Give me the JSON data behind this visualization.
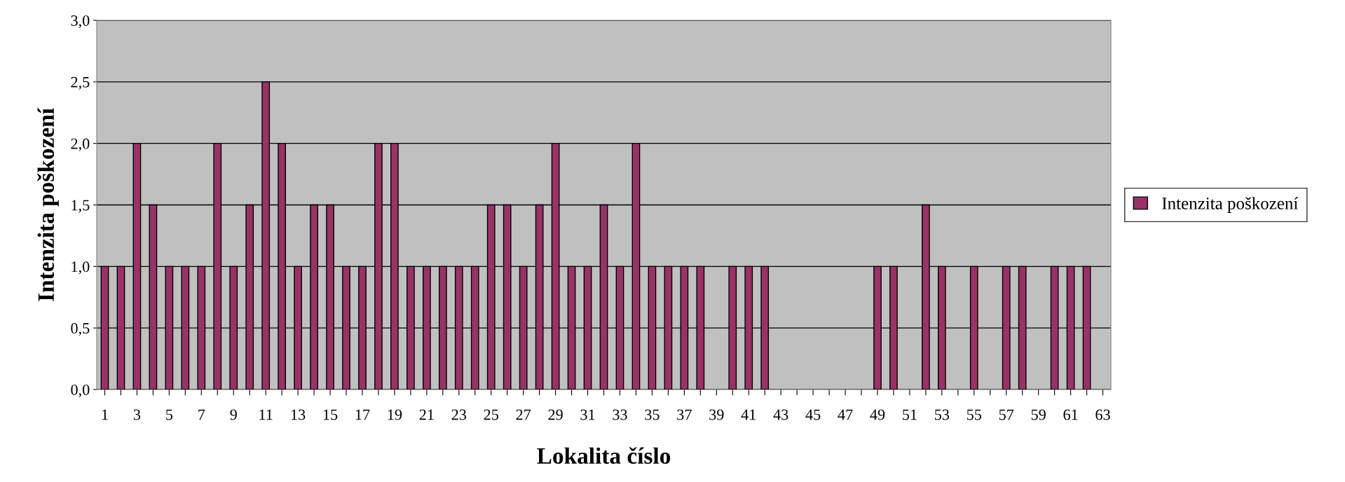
{
  "chart_data": {
    "type": "bar",
    "xlabel": "Lokalita číslo",
    "ylabel": "Intenzita poškození",
    "categories": [
      "1",
      null,
      "3",
      null,
      "5",
      null,
      "7",
      null,
      "9",
      null,
      "11",
      null,
      "13",
      null,
      "15",
      null,
      "17",
      null,
      "19",
      null,
      "21",
      null,
      "23",
      null,
      "25",
      null,
      "27",
      null,
      "29",
      null,
      "31",
      null,
      "33",
      null,
      "35",
      null,
      "37",
      null,
      "39",
      null,
      "41",
      null,
      "43",
      null,
      "45",
      null,
      "47",
      null,
      "49",
      null,
      "51",
      null,
      "53",
      null,
      "55",
      null,
      "57",
      null,
      "59",
      null,
      "61",
      null,
      "63"
    ],
    "series": [
      {
        "name": "Intenzita poškození",
        "color": "#993366",
        "values": [
          1,
          1,
          2,
          1.5,
          1,
          1,
          1,
          2,
          1,
          1.5,
          2.5,
          2,
          1,
          1.5,
          1.5,
          1,
          1,
          2,
          2,
          1,
          1,
          1,
          1,
          1,
          1.5,
          1.5,
          1,
          1.5,
          2,
          1,
          1,
          1.5,
          1,
          2,
          1,
          1,
          1,
          1,
          null,
          1,
          1,
          1,
          null,
          null,
          null,
          null,
          null,
          null,
          1,
          1,
          null,
          1.5,
          1,
          null,
          1,
          null,
          1,
          1,
          null,
          1,
          1,
          1,
          null
        ]
      }
    ],
    "ylim": [
      0,
      3
    ],
    "yticks": [
      {
        "value": 0,
        "label": "0,0"
      },
      {
        "value": 0.5,
        "label": "0,5"
      },
      {
        "value": 1,
        "label": "1,0"
      },
      {
        "value": 1.5,
        "label": "1,5"
      },
      {
        "value": 2,
        "label": "2,0"
      },
      {
        "value": 2.5,
        "label": "2,5"
      },
      {
        "value": 3,
        "label": "3,0"
      }
    ],
    "grid": "y",
    "legend": "right"
  }
}
